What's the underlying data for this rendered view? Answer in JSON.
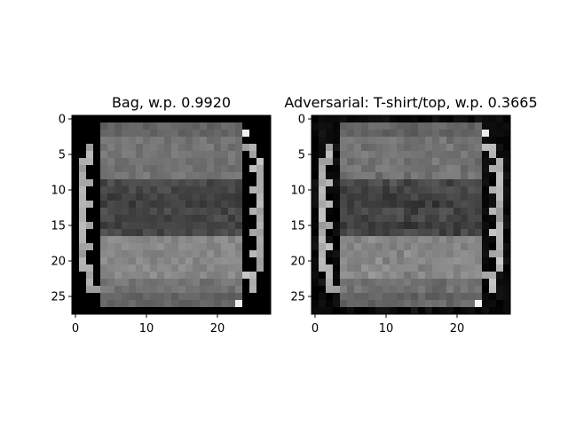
{
  "chart_data": [
    {
      "type": "heatmap",
      "title": "Bag, w.p. 0.9920",
      "xlabel": "",
      "ylabel": "",
      "colormap": "gray",
      "image_size": [
        28,
        28
      ],
      "xlim": [
        -0.5,
        27.5
      ],
      "ylim": [
        27.5,
        -0.5
      ],
      "xticks": [
        0,
        10,
        20
      ],
      "yticks": [
        0,
        5,
        10,
        15,
        20,
        25
      ],
      "grid": false,
      "legend": "none"
    },
    {
      "type": "heatmap",
      "title": "Adversarial: T-shirt/top, w.p. 0.3665",
      "xlabel": "",
      "ylabel": "",
      "colormap": "gray",
      "image_size": [
        28,
        28
      ],
      "xlim": [
        -0.5,
        27.5
      ],
      "ylim": [
        27.5,
        -0.5
      ],
      "xticks": [
        0,
        10,
        20
      ],
      "yticks": [
        0,
        5,
        10,
        15,
        20,
        25
      ],
      "grid": false,
      "legend": "none"
    }
  ]
}
